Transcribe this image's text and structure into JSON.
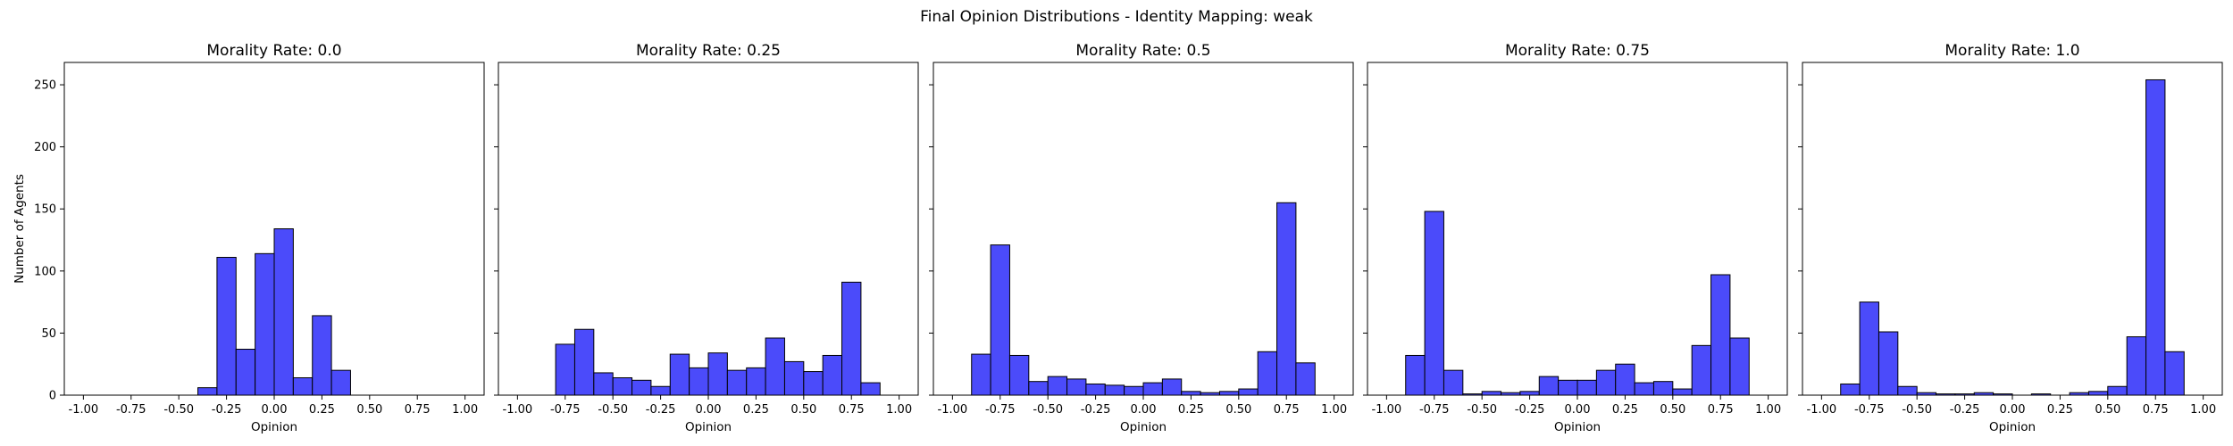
{
  "figure": {
    "suptitle": "Final Opinion Distributions - Identity Mapping: weak",
    "bar_color": "#4b4bfa",
    "edge_color": "#000000"
  },
  "chart_data": [
    {
      "type": "bar",
      "title": "Morality Rate: 0.0",
      "xlabel": "Opinion",
      "ylabel": "Number of Agents",
      "xlim": [
        -1.1,
        1.1
      ],
      "ylim": [
        0,
        268
      ],
      "xticks": [
        "-1.00",
        "-0.75",
        "-0.50",
        "-0.25",
        "0.00",
        "0.25",
        "0.50",
        "0.75",
        "1.00"
      ],
      "yticks": [
        "0",
        "50",
        "100",
        "150",
        "200",
        "250"
      ],
      "bin_edges": [
        -0.4,
        -0.3,
        -0.2,
        -0.1,
        0.0,
        0.1,
        0.2,
        0.3,
        0.4
      ],
      "values": [
        6,
        111,
        37,
        114,
        134,
        14,
        64,
        20
      ]
    },
    {
      "type": "bar",
      "title": "Morality Rate: 0.25",
      "xlabel": "Opinion",
      "xlim": [
        -1.1,
        1.1
      ],
      "ylim": [
        0,
        268
      ],
      "xticks": [
        "-1.00",
        "-0.75",
        "-0.50",
        "-0.25",
        "0.00",
        "0.25",
        "0.50",
        "0.75",
        "1.00"
      ],
      "bin_edges": [
        -0.8,
        -0.7,
        -0.6,
        -0.5,
        -0.4,
        -0.3,
        -0.2,
        -0.1,
        0.0,
        0.1,
        0.2,
        0.3,
        0.4,
        0.5,
        0.6,
        0.7,
        0.8,
        0.9
      ],
      "values": [
        41,
        53,
        18,
        14,
        12,
        7,
        33,
        22,
        34,
        20,
        22,
        46,
        27,
        19,
        32,
        91,
        10
      ]
    },
    {
      "type": "bar",
      "title": "Morality Rate: 0.5",
      "xlabel": "Opinion",
      "xlim": [
        -1.1,
        1.1
      ],
      "ylim": [
        0,
        268
      ],
      "xticks": [
        "-1.00",
        "-0.75",
        "-0.50",
        "-0.25",
        "0.00",
        "0.25",
        "0.50",
        "0.75",
        "1.00"
      ],
      "bin_edges": [
        -0.9,
        -0.8,
        -0.7,
        -0.6,
        -0.5,
        -0.4,
        -0.3,
        -0.2,
        -0.1,
        0.0,
        0.1,
        0.2,
        0.3,
        0.4,
        0.5,
        0.6,
        0.7,
        0.8,
        0.9
      ],
      "values": [
        33,
        121,
        32,
        11,
        15,
        13,
        9,
        8,
        7,
        10,
        13,
        3,
        2,
        3,
        5,
        35,
        155,
        26
      ]
    },
    {
      "type": "bar",
      "title": "Morality Rate: 0.75",
      "xlabel": "Opinion",
      "xlim": [
        -1.1,
        1.1
      ],
      "ylim": [
        0,
        268
      ],
      "xticks": [
        "-1.00",
        "-0.75",
        "-0.50",
        "-0.25",
        "0.00",
        "0.25",
        "0.50",
        "0.75",
        "1.00"
      ],
      "bin_edges": [
        -0.9,
        -0.8,
        -0.7,
        -0.6,
        -0.5,
        -0.4,
        -0.3,
        -0.2,
        -0.1,
        0.0,
        0.1,
        0.2,
        0.3,
        0.4,
        0.5,
        0.6,
        0.7,
        0.8,
        0.9
      ],
      "values": [
        32,
        148,
        20,
        1,
        3,
        2,
        3,
        15,
        12,
        12,
        20,
        25,
        10,
        11,
        5,
        40,
        97,
        46
      ]
    },
    {
      "type": "bar",
      "title": "Morality Rate: 1.0",
      "xlabel": "Opinion",
      "xlim": [
        -1.1,
        1.1
      ],
      "ylim": [
        0,
        268
      ],
      "xticks": [
        "-1.00",
        "-0.75",
        "-0.50",
        "-0.25",
        "0.00",
        "0.25",
        "0.50",
        "0.75",
        "1.00"
      ],
      "bin_edges": [
        -0.9,
        -0.8,
        -0.7,
        -0.6,
        -0.5,
        -0.4,
        -0.3,
        -0.2,
        -0.1,
        0.0,
        0.1,
        0.2,
        0.3,
        0.4,
        0.5,
        0.6,
        0.7,
        0.8,
        0.9
      ],
      "values": [
        9,
        75,
        51,
        7,
        2,
        1,
        1,
        2,
        1,
        0,
        1,
        0,
        2,
        3,
        7,
        47,
        254,
        35
      ]
    }
  ]
}
